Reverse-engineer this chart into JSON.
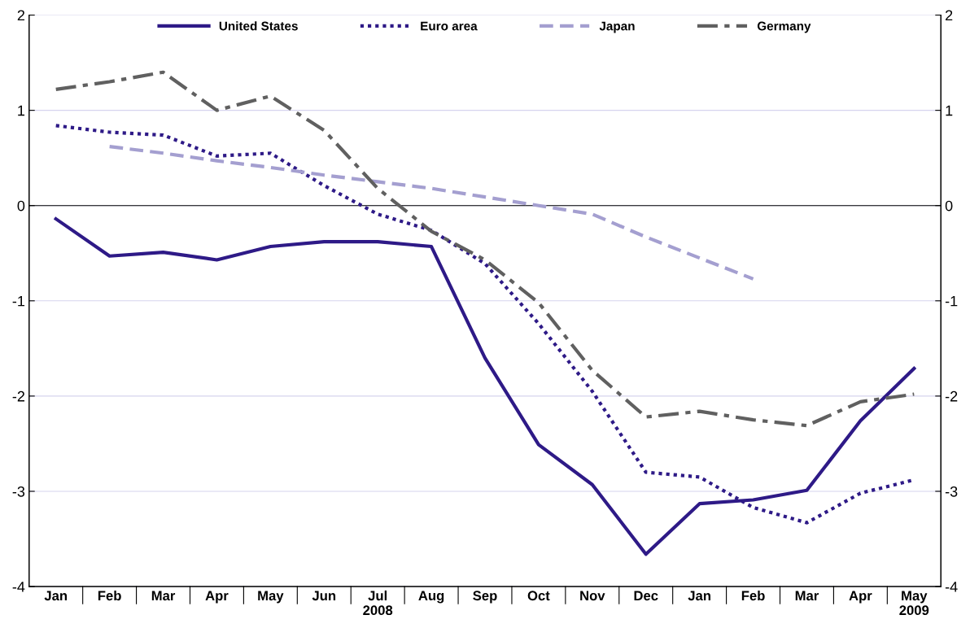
{
  "chart_data": {
    "type": "line",
    "categories": [
      "Jan",
      "Feb",
      "Mar",
      "Apr",
      "May",
      "Jun",
      "Jul\n2008",
      "Aug",
      "Sep",
      "Oct",
      "Nov",
      "Dec",
      "Jan",
      "Feb",
      "Mar",
      "Apr",
      "May\n2009"
    ],
    "series": [
      {
        "name": "United States",
        "color": "#2e1a87",
        "line_style": "solid",
        "values": [
          -0.14,
          -0.53,
          -0.49,
          -0.57,
          -0.43,
          -0.38,
          -0.38,
          -0.43,
          -1.6,
          -2.51,
          -2.93,
          -3.66,
          -3.13,
          -3.09,
          -2.99,
          -2.26,
          -1.71
        ]
      },
      {
        "name": "Euro area",
        "color": "#2e1a87",
        "line_style": "dotted",
        "values": [
          0.84,
          0.77,
          0.74,
          0.52,
          0.55,
          0.21,
          -0.09,
          -0.26,
          -0.61,
          -1.24,
          -1.95,
          -2.8,
          -2.85,
          -3.17,
          -3.33,
          -3.02,
          -2.88
        ]
      },
      {
        "name": "Japan",
        "color": "#a49fd0",
        "line_style": "dashed",
        "values": [
          null,
          0.62,
          0.55,
          0.47,
          0.4,
          0.32,
          0.25,
          0.18,
          0.09,
          0.0,
          -0.09,
          -0.33,
          -0.55,
          -0.77,
          null,
          null,
          null
        ]
      },
      {
        "name": "Germany",
        "color": "#606060",
        "line_style": "dashdot",
        "values": [
          1.22,
          1.3,
          1.4,
          1.0,
          1.15,
          0.79,
          0.18,
          -0.27,
          -0.57,
          -1.02,
          -1.73,
          -2.22,
          -2.16,
          -2.25,
          -2.31,
          -2.06,
          -1.98
        ]
      }
    ],
    "ylim": [
      -4,
      2
    ],
    "yticks": [
      -4,
      -3,
      -2,
      -1,
      0,
      1,
      2
    ],
    "y2lim": [
      -4,
      2
    ],
    "y2ticks": [
      -4,
      -3,
      -2,
      -1,
      0,
      1,
      2
    ],
    "ref_lines": [
      {
        "axis": "y",
        "value": 0,
        "color": "#000000"
      }
    ],
    "grid": "y",
    "legend": "top",
    "marker": "none"
  }
}
